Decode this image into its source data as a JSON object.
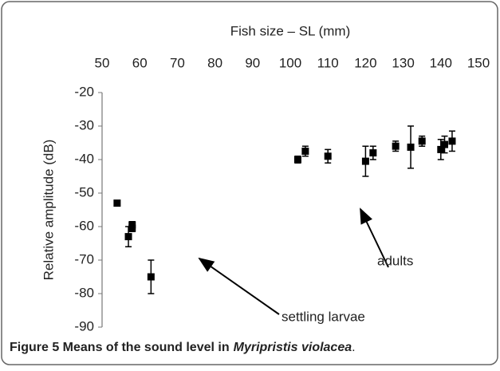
{
  "chart_data": {
    "type": "scatter",
    "xlabel": "Fish size – SL (mm)",
    "ylabel": "Relative amplitude (dB)",
    "xlim": [
      50,
      150
    ],
    "xticks": [
      50,
      60,
      70,
      80,
      90,
      100,
      110,
      120,
      130,
      140,
      150
    ],
    "ylim": [
      -20,
      -90
    ],
    "yticks": [
      -20,
      -30,
      -40,
      -50,
      -60,
      -70,
      -80,
      -90
    ],
    "series": [
      {
        "color": "#000000",
        "x": [
          54,
          57,
          58,
          58,
          63,
          102,
          104,
          110,
          120,
          122,
          128,
          132,
          135,
          140,
          141,
          143
        ],
        "values": [
          -53,
          -63,
          -59.5,
          -60.5,
          -75,
          -40,
          -37.5,
          -39,
          -40.5,
          -38,
          -36,
          -36.3,
          -34.5,
          -37,
          -35.5,
          -34.5
        ],
        "errors": [
          null,
          3,
          1,
          1,
          5,
          1,
          1.5,
          2,
          4.5,
          2,
          1.5,
          6.3,
          1.5,
          3,
          2.5,
          3
        ]
      }
    ],
    "annotations": [
      {
        "text": "adults"
      },
      {
        "text": "settling larvae"
      }
    ],
    "caption": {
      "bold": "Figure 5 Means of the sound level in",
      "italic": "Myripristis violacea",
      "end": "."
    }
  }
}
